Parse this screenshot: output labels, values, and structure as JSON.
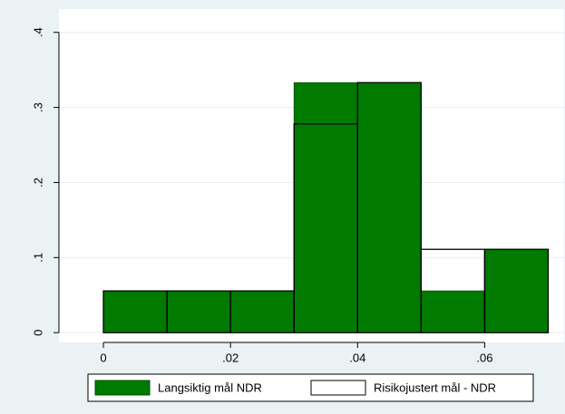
{
  "chart_data": {
    "type": "histogram",
    "bins": [
      0,
      0.01,
      0.02,
      0.03,
      0.04,
      0.05,
      0.06,
      0.07
    ],
    "series": [
      {
        "name": "Langsiktig mål NDR",
        "color": "#007a00",
        "values": [
          0.0556,
          0.0556,
          0.0556,
          0.333,
          0.333,
          0.0556,
          0.111
        ]
      },
      {
        "name": "Risikojustert mål - NDR",
        "color": "#000000",
        "values": [
          0.0556,
          0.0556,
          0.0556,
          0.278,
          0.333,
          0.111,
          0.111
        ]
      }
    ],
    "xlim": [
      -0.007,
      0.0725
    ],
    "ylim": [
      -0.013,
      0.431
    ],
    "xticks": [
      0,
      {
        "value": 0.02,
        "label": ".02"
      },
      {
        "value": 0.04,
        "label": ".04"
      },
      {
        "value": 0.06,
        "label": ".06"
      }
    ],
    "yticks": [
      0,
      {
        "value": 0.1,
        "label": ".1"
      },
      {
        "value": 0.2,
        "label": ".2"
      },
      {
        "value": 0.3,
        "label": ".3"
      },
      {
        "value": 0.4,
        "label": ".4"
      }
    ],
    "grid": true,
    "legend": "bottom"
  }
}
